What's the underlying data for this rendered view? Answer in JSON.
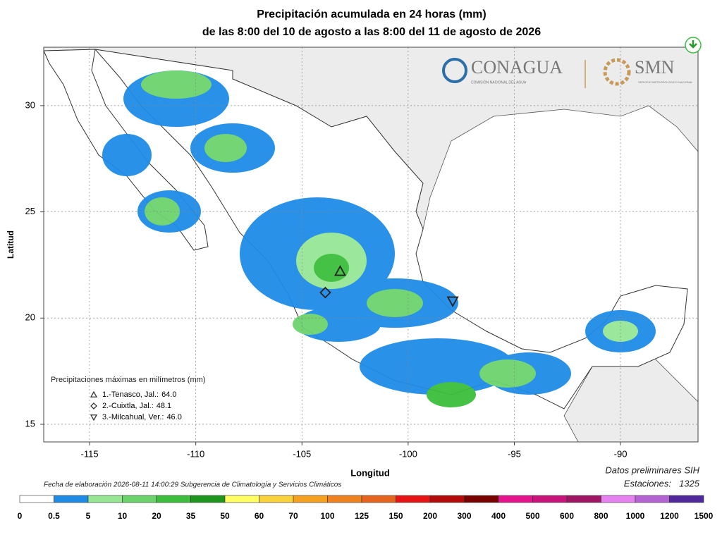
{
  "map": {
    "title": "Precipitación acumulada en 24 horas (mm)",
    "subtitle": "de las 8:00 del 10 de agosto a las 8:00 del 11 de agosto de 2026",
    "x_label": "Longitud",
    "y_label": "Latitud",
    "xlim": [
      -117.16,
      -86.35
    ],
    "ylim": [
      14.17,
      32.75
    ],
    "xticks": [
      -115,
      -110,
      -105,
      -100,
      -95,
      -90
    ],
    "yticks": [
      15,
      20,
      25,
      30
    ],
    "logos": {
      "conagua": "CONAGUA",
      "conagua_sub": "COMISIÓN NACIONAL DEL AGUA",
      "smn": "SMN",
      "smn_sub": "SERVICIO METEOROLÓGICO NACIONAL"
    },
    "legend_title": "Precipitaciones máximas en milímetros (mm)",
    "stations": [
      {
        "name": "1.-Tenasco, Jal.:",
        "value": {
          "value": 64,
          "label": "64.0"
        },
        "lon": -103.2,
        "lat": 22.2
      },
      {
        "name": "2.-Cuixtla, Jal.:",
        "value": {
          "value": 48.1,
          "label": "48.1"
        },
        "lon": -103.9,
        "lat": 21.2
      },
      {
        "name": "3.-Milcahual, Ver.:",
        "value": {
          "value": 46,
          "label": "46.0"
        },
        "lon": -97.9,
        "lat": 20.8
      }
    ],
    "footer": "Fecha de elaboración 2026-08-11 14:00:29 Subgerencia de Climatología y Servicios Climáticos",
    "source": "Datos preliminares SIH",
    "stations_label": "Estaciones:",
    "stations_count": 1325,
    "colorbar": {
      "bins": [
        0,
        0.5,
        5,
        10,
        20,
        35,
        50,
        60,
        70,
        100,
        125,
        150,
        200,
        300,
        400,
        500,
        600,
        800,
        1000,
        1200,
        1500
      ],
      "colors": [
        "#ffffff",
        "#1e8ce6",
        "#96e696",
        "#6cd36c",
        "#3cbe3c",
        "#1e961e",
        "#ffff64",
        "#fad23c",
        "#f5a01e",
        "#f0821e",
        "#e6641e",
        "#e61414",
        "#b40a0a",
        "#780000",
        "#e6148c",
        "#c8147a",
        "#a01464",
        "#e682f0",
        "#b464d2",
        "#50289b"
      ]
    }
  }
}
